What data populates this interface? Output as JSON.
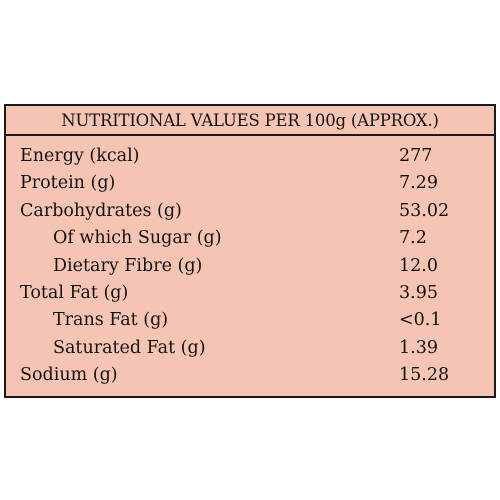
{
  "header": {
    "title": "NUTRITIONAL VALUES PER 100g (APPROX.)"
  },
  "rows": [
    {
      "label": "Energy (kcal)",
      "value": "277",
      "indent": false
    },
    {
      "label": "Protein (g)",
      "value": "7.29",
      "indent": false
    },
    {
      "label": "Carbohydrates (g)",
      "value": "53.02",
      "indent": false
    },
    {
      "label": "Of which Sugar (g)",
      "value": "7.2",
      "indent": true
    },
    {
      "label": "Dietary Fibre (g)",
      "value": "12.0",
      "indent": true
    },
    {
      "label": "Total Fat (g)",
      "value": "3.95",
      "indent": false
    },
    {
      "label": "Trans Fat (g)",
      "value": "<0.1",
      "indent": true
    },
    {
      "label": "Saturated Fat (g)",
      "value": "1.39",
      "indent": true
    },
    {
      "label": "Sodium (g)",
      "value": "15.28",
      "indent": false
    }
  ],
  "colors": {
    "panel_background": "#f6c4b2",
    "border": "#1a1a1a",
    "text": "#111111"
  }
}
